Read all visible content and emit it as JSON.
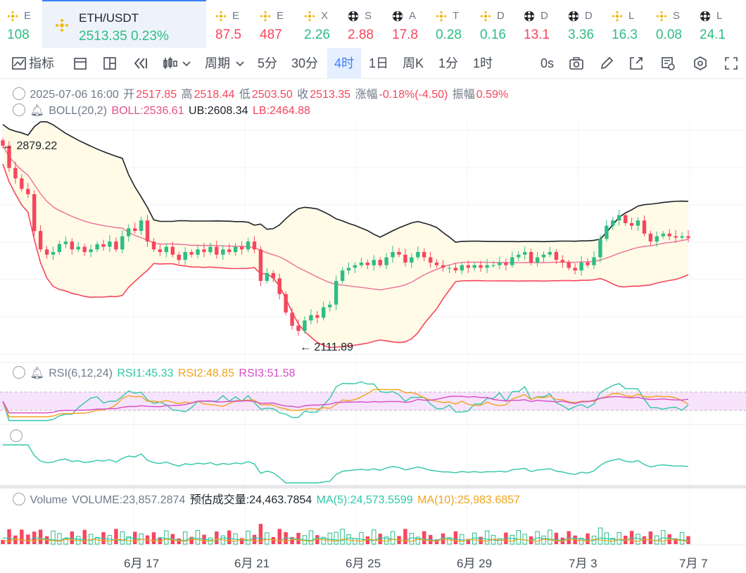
{
  "ticker": [
    {
      "name": "E",
      "price": "108",
      "dir": "up",
      "icon": "binance-icon",
      "x": 10
    },
    {
      "name": "ETH/USDT",
      "price": "2513.35",
      "change": "0.23%",
      "dir": "up",
      "icon": "binance-icon",
      "x": 60,
      "active": true
    },
    {
      "name": "E",
      "price": "87.5",
      "dir": "dn",
      "icon": "binance-icon",
      "x": 306
    },
    {
      "name": "E",
      "price": "487",
      "dir": "dn",
      "icon": "binance-icon",
      "x": 369
    },
    {
      "name": "X",
      "price": "2.26",
      "dir": "up",
      "icon": "binance-icon",
      "x": 432
    },
    {
      "name": "S",
      "price": "2.88",
      "dir": "dn",
      "icon": "ball-icon",
      "x": 494
    },
    {
      "name": "A",
      "price": "17.8",
      "dir": "dn",
      "icon": "ball-icon",
      "x": 557
    },
    {
      "name": "T",
      "price": "0.28",
      "dir": "up",
      "icon": "binance-icon",
      "x": 619
    },
    {
      "name": "D",
      "price": "0.16",
      "dir": "up",
      "icon": "binance-icon",
      "x": 682
    },
    {
      "name": "D",
      "price": "13.1",
      "dir": "dn",
      "icon": "ball-icon",
      "x": 744
    },
    {
      "name": "D",
      "price": "3.36",
      "dir": "up",
      "icon": "ball-icon",
      "x": 807
    },
    {
      "name": "L",
      "price": "16.3",
      "dir": "up",
      "icon": "binance-icon",
      "x": 869
    },
    {
      "name": "S",
      "price": "0.08",
      "dir": "up",
      "icon": "binance-icon",
      "x": 932
    },
    {
      "name": "L",
      "price": "24.1",
      "dir": "up",
      "icon": "ball-icon",
      "x": 994
    }
  ],
  "toolbar": {
    "indicators": "指标",
    "period": "周期",
    "intervals": [
      "5分",
      "30分",
      "4时",
      "1日",
      "周K",
      "1分",
      "1时"
    ],
    "selected_interval": "4时",
    "timer": "0s"
  },
  "ohlc": {
    "datetime": "2025-07-06 16:00",
    "open_label": "开",
    "open": "2517.85",
    "high_label": "高",
    "high": "2518.44",
    "low_label": "低",
    "low": "2503.50",
    "close_label": "收",
    "close": "2513.35",
    "change_label": "涨幅",
    "change": "-0.18%(-4.50)",
    "amp_label": "振幅",
    "amp": "0.59%"
  },
  "boll": {
    "name": "BOLL(20,2)",
    "mid": "BOLL:2536.61",
    "ub": "UB:2608.34",
    "lb": "LB:2464.88"
  },
  "rsi": {
    "name": "RSI(6,12,24)",
    "rsi1": "RSI1:45.33",
    "rsi2": "RSI2:48.85",
    "rsi3": "RSI3:51.58"
  },
  "volume": {
    "name": "Volume",
    "vol": "VOLUME:23,857.2874",
    "est": "预估成交量:24,463.7854",
    "ma5": "MA(5):24,573.5599",
    "ma10": "MA(10):25,983.6857"
  },
  "chart_data": {
    "type": "candlestick",
    "high_marker": "2879.22",
    "low_marker": "2111.89",
    "x_ticks": [
      "6月 17",
      "6月 21",
      "6月 25",
      "6月 29",
      "7月 3",
      "7月 7"
    ],
    "colors": {
      "up": "#2ebd85",
      "down": "#f6465d",
      "ub": "#1e2329",
      "mid": "#ee6f9a",
      "lb": "#f6465d",
      "band": "#fffbe6",
      "rsi1": "#2fc7a7",
      "rsi2": "#f0a31c",
      "rsi3": "#d64cc7"
    },
    "closes": [
      2865,
      2780,
      2740,
      2700,
      2680,
      2540,
      2470,
      2450,
      2460,
      2490,
      2500,
      2470,
      2480,
      2460,
      2470,
      2490,
      2480,
      2500,
      2470,
      2520,
      2550,
      2540,
      2580,
      2500,
      2470,
      2460,
      2480,
      2450,
      2430,
      2460,
      2450,
      2470,
      2460,
      2480,
      2450,
      2470,
      2460,
      2480,
      2470,
      2500,
      2470,
      2350,
      2380,
      2360,
      2300,
      2230,
      2180,
      2160,
      2200,
      2220,
      2210,
      2250,
      2260,
      2350,
      2390,
      2400,
      2410,
      2420,
      2410,
      2430,
      2410,
      2440,
      2460,
      2450,
      2420,
      2440,
      2460,
      2440,
      2420,
      2410,
      2400,
      2400,
      2390,
      2410,
      2400,
      2410,
      2400,
      2410,
      2410,
      2420,
      2410,
      2440,
      2450,
      2460,
      2420,
      2440,
      2450,
      2460,
      2430,
      2420,
      2400,
      2390,
      2420,
      2410,
      2440,
      2510,
      2560,
      2580,
      2600,
      2570,
      2560,
      2580,
      2530,
      2500,
      2520,
      2530,
      2520,
      2515,
      2520,
      2513
    ]
  }
}
